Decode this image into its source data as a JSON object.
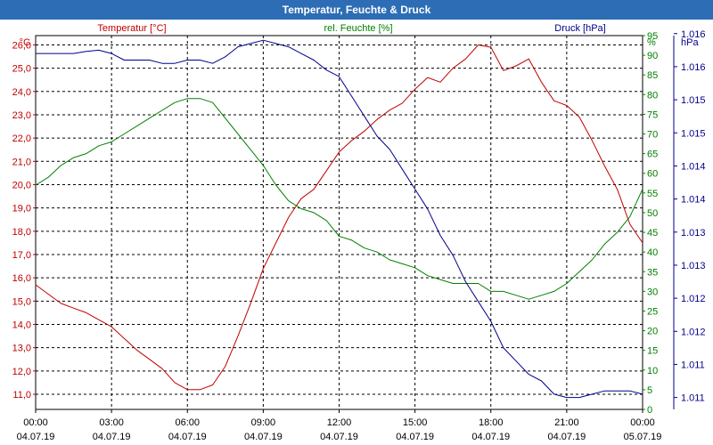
{
  "colors": {
    "title_bg": "#2d6db5",
    "temperature": "#c00000",
    "humidity": "#008000",
    "pressure": "#00008b",
    "grid": "#000000",
    "axis_text": "#000000"
  },
  "chart_data": {
    "type": "line",
    "title": "Temperatur, Feuchte & Druck",
    "x_ticks": [
      {
        "hours": 0,
        "time": "00:00",
        "date": "04.07.19"
      },
      {
        "hours": 3,
        "time": "03:00",
        "date": "04.07.19"
      },
      {
        "hours": 6,
        "time": "06:00",
        "date": "04.07.19"
      },
      {
        "hours": 9,
        "time": "09:00",
        "date": "04.07.19"
      },
      {
        "hours": 12,
        "time": "12:00",
        "date": "04.07.19"
      },
      {
        "hours": 15,
        "time": "15:00",
        "date": "04.07.19"
      },
      {
        "hours": 18,
        "time": "18:00",
        "date": "04.07.19"
      },
      {
        "hours": 21,
        "time": "21:00",
        "date": "04.07.19"
      },
      {
        "hours": 24,
        "time": "00:00",
        "date": "05.07.19"
      }
    ],
    "xlim": [
      0,
      24
    ],
    "axes": {
      "temperature": {
        "label": "Temperatur [°C]",
        "unit": "°C",
        "ylim": [
          10.35,
          26.4
        ],
        "ticks": [
          "11,0",
          "12,0",
          "13,0",
          "14,0",
          "15,0",
          "16,0",
          "17,0",
          "18,0",
          "19,0",
          "20,0",
          "21,0",
          "22,0",
          "23,0",
          "24,0",
          "25,0",
          "26,0"
        ],
        "tick_values": [
          11,
          12,
          13,
          14,
          15,
          16,
          17,
          18,
          19,
          20,
          21,
          22,
          23,
          24,
          25,
          26
        ]
      },
      "humidity": {
        "label": "rel. Feuchte [%]",
        "unit": "%",
        "ylim": [
          0,
          95
        ],
        "ticks": [
          "0",
          "5",
          "10",
          "15",
          "20",
          "25",
          "30",
          "35",
          "40",
          "45",
          "50",
          "55",
          "60",
          "65",
          "70",
          "75",
          "80",
          "85",
          "90",
          "95"
        ],
        "tick_values": [
          0,
          5,
          10,
          15,
          20,
          25,
          30,
          35,
          40,
          45,
          50,
          55,
          60,
          65,
          70,
          75,
          80,
          85,
          90,
          95
        ]
      },
      "pressure": {
        "label": "Druck [hPa]",
        "unit": "hPa",
        "ylim": [
          1010.57,
          1016.22
        ],
        "ticks": [
          "1.011",
          "1.011",
          "1.012",
          "1.012",
          "1.013",
          "1.013",
          "1.014",
          "1.014",
          "1.015",
          "1.015",
          "1.016",
          "1.016"
        ],
        "tick_values": [
          1010.75,
          1011.25,
          1011.75,
          1012.25,
          1012.75,
          1013.25,
          1013.75,
          1014.25,
          1014.75,
          1015.25,
          1015.75,
          1016.25
        ]
      }
    },
    "series": [
      {
        "name": "Temperatur",
        "axis": "temperature",
        "x": [
          0,
          0.5,
          1,
          1.5,
          2,
          2.5,
          3,
          3.5,
          4,
          4.5,
          5,
          5.5,
          6,
          6.5,
          7,
          7.5,
          8,
          8.5,
          9,
          9.5,
          10,
          10.5,
          11,
          11.5,
          12,
          12.5,
          13,
          13.5,
          14,
          14.5,
          15,
          15.5,
          16,
          16.5,
          17,
          17.5,
          18,
          18.5,
          19,
          19.5,
          20,
          20.5,
          21,
          21.5,
          22,
          22.5,
          23,
          23.5,
          24
        ],
        "values": [
          15.7,
          15.3,
          14.9,
          14.7,
          14.5,
          14.2,
          13.9,
          13.4,
          12.9,
          12.5,
          12.1,
          11.5,
          11.2,
          11.2,
          11.4,
          12.2,
          13.5,
          14.9,
          16.4,
          17.5,
          18.6,
          19.4,
          19.8,
          20.6,
          21.4,
          21.9,
          22.3,
          22.8,
          23.2,
          23.5,
          24.1,
          24.6,
          24.4,
          25.0,
          25.4,
          26.0,
          25.9,
          24.9,
          25.1,
          25.4,
          24.4,
          23.6,
          23.4,
          22.9,
          21.9,
          20.8,
          19.8,
          18.3,
          17.5
        ]
      },
      {
        "name": "rel. Feuchte",
        "axis": "humidity",
        "x": [
          0,
          0.5,
          1,
          1.5,
          2,
          2.5,
          3,
          3.5,
          4,
          4.5,
          5,
          5.5,
          6,
          6.5,
          7,
          7.5,
          8,
          8.5,
          9,
          9.5,
          10,
          10.5,
          11,
          11.5,
          12,
          12.5,
          13,
          13.5,
          14,
          14.5,
          15,
          15.5,
          16,
          16.5,
          17,
          17.5,
          18,
          18.5,
          19,
          19.5,
          20,
          20.5,
          21,
          21.5,
          22,
          22.5,
          23,
          23.5,
          24
        ],
        "values": [
          57,
          59,
          62,
          64,
          65,
          67,
          68,
          70,
          72,
          74,
          76,
          78,
          79,
          79,
          78,
          74,
          70,
          66,
          62,
          57,
          53,
          51,
          50,
          48,
          44,
          43,
          41,
          40,
          38,
          37,
          36,
          34,
          33,
          32,
          32,
          32,
          30,
          30,
          29,
          28,
          29,
          30,
          32,
          35,
          38,
          42,
          45,
          49,
          56
        ]
      },
      {
        "name": "Druck",
        "axis": "pressure",
        "x": [
          0,
          0.5,
          1,
          1.5,
          2,
          2.5,
          3,
          3.5,
          4,
          4.5,
          5,
          5.5,
          6,
          6.5,
          7,
          7.5,
          8,
          8.5,
          9,
          9.5,
          10,
          10.5,
          11,
          11.5,
          12,
          12.5,
          13,
          13.5,
          14,
          14.5,
          15,
          15.5,
          16,
          16.5,
          17,
          17.5,
          18,
          18.5,
          19,
          19.5,
          20,
          20.5,
          21,
          21.5,
          22,
          22.5,
          23,
          23.5,
          24
        ],
        "values": [
          1015.95,
          1015.95,
          1015.95,
          1015.95,
          1015.98,
          1016.0,
          1015.95,
          1015.85,
          1015.85,
          1015.85,
          1015.8,
          1015.8,
          1015.85,
          1015.85,
          1015.8,
          1015.9,
          1016.05,
          1016.1,
          1016.15,
          1016.1,
          1016.05,
          1015.95,
          1015.85,
          1015.7,
          1015.6,
          1015.3,
          1015.0,
          1014.7,
          1014.5,
          1014.2,
          1013.9,
          1013.6,
          1013.2,
          1012.9,
          1012.5,
          1012.2,
          1011.9,
          1011.5,
          1011.3,
          1011.1,
          1011.0,
          1010.8,
          1010.75,
          1010.75,
          1010.8,
          1010.85,
          1010.85,
          1010.85,
          1010.8
        ]
      }
    ]
  }
}
